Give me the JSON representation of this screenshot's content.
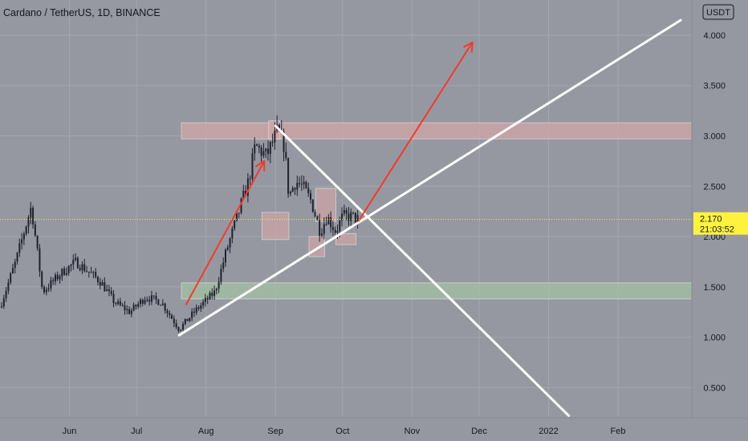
{
  "title": "Cardano / TetherUS, 1D, BINANCE",
  "currency_badge": "USDT",
  "last_price": "2.170",
  "countdown": "21:03:52",
  "colors": {
    "background": "#9598a1",
    "grid": "#a3a6ae",
    "candle": "#1e222d",
    "resistance_zone": "#d2a6a6",
    "support_zone": "#a3c2a3",
    "drawing_line": "#ffffff",
    "arrow": "#f23a2a",
    "price_label": "#fff23e"
  },
  "chart_data": {
    "type": "candlestick",
    "title": "Cardano / TetherUS, 1D, BINANCE",
    "y_axis": {
      "min": 0.2,
      "max": 4.35,
      "ticks": [
        "0.500",
        "1.000",
        "1.500",
        "2.000",
        "2.500",
        "3.000",
        "3.500",
        "4.000"
      ]
    },
    "x_axis": {
      "ticks": [
        "Jun",
        "Jul",
        "Aug",
        "Sep",
        "Oct",
        "Nov",
        "Dec",
        "2022",
        "Feb"
      ]
    },
    "grid": true,
    "current_price": 2.17,
    "price_path": [
      {
        "date": "2021-05-01",
        "close": 1.3
      },
      {
        "date": "2021-05-08",
        "close": 1.75
      },
      {
        "date": "2021-05-15",
        "close": 2.3
      },
      {
        "date": "2021-05-20",
        "close": 1.45
      },
      {
        "date": "2021-05-29",
        "close": 1.65
      },
      {
        "date": "2021-06-04",
        "close": 1.75
      },
      {
        "date": "2021-06-15",
        "close": 1.55
      },
      {
        "date": "2021-06-21",
        "close": 1.35
      },
      {
        "date": "2021-06-28",
        "close": 1.25
      },
      {
        "date": "2021-07-05",
        "close": 1.4
      },
      {
        "date": "2021-07-12",
        "close": 1.35
      },
      {
        "date": "2021-07-20",
        "close": 1.08
      },
      {
        "date": "2021-07-28",
        "close": 1.28
      },
      {
        "date": "2021-08-05",
        "close": 1.45
      },
      {
        "date": "2021-08-10",
        "close": 1.85
      },
      {
        "date": "2021-08-15",
        "close": 2.2
      },
      {
        "date": "2021-08-20",
        "close": 2.55
      },
      {
        "date": "2021-08-23",
        "close": 2.9
      },
      {
        "date": "2021-08-28",
        "close": 2.8
      },
      {
        "date": "2021-09-02",
        "close": 3.05
      },
      {
        "date": "2021-09-05",
        "close": 2.9
      },
      {
        "date": "2021-09-07",
        "close": 2.4
      },
      {
        "date": "2021-09-10",
        "close": 2.55
      },
      {
        "date": "2021-09-13",
        "close": 2.5
      },
      {
        "date": "2021-09-17",
        "close": 2.35
      },
      {
        "date": "2021-09-21",
        "close": 2.05
      },
      {
        "date": "2021-09-24",
        "close": 2.2
      },
      {
        "date": "2021-09-28",
        "close": 2.05
      },
      {
        "date": "2021-10-01",
        "close": 2.2
      },
      {
        "date": "2021-10-05",
        "close": 2.2
      },
      {
        "date": "2021-10-08",
        "close": 2.17
      }
    ],
    "annotations": {
      "zones": [
        {
          "kind": "resistance",
          "from": "2021-07-21",
          "to": "end",
          "low": 2.97,
          "high": 3.13
        },
        {
          "kind": "support",
          "from": "2021-07-21",
          "to": "end",
          "low": 1.38,
          "high": 1.54
        }
      ],
      "boxes": [
        {
          "from": "2021-08-29",
          "to": "2021-09-03",
          "low": 2.97,
          "high": 3.15
        },
        {
          "from": "2021-08-26",
          "to": "2021-09-07",
          "low": 1.97,
          "high": 2.24
        },
        {
          "from": "2021-09-16",
          "to": "2021-09-23",
          "low": 1.8,
          "high": 2.0
        },
        {
          "from": "2021-09-19",
          "to": "2021-09-28",
          "low": 2.15,
          "high": 2.48
        },
        {
          "from": "2021-09-28",
          "to": "2021-10-07",
          "low": 1.92,
          "high": 2.03
        }
      ],
      "trend_lines": [
        {
          "from": {
            "date": "2021-07-20",
            "value": 1.02
          },
          "to": {
            "date": "2022-03-01",
            "value": 4.15
          }
        },
        {
          "from": {
            "date": "2021-09-01",
            "value": 3.1
          },
          "to": {
            "date": "2022-01-10",
            "value": 0.22
          }
        }
      ],
      "arrows": [
        {
          "from": {
            "date": "2021-07-23",
            "value": 1.32
          },
          "to": {
            "date": "2021-08-27",
            "value": 2.75
          }
        },
        {
          "from": {
            "date": "2021-10-08",
            "value": 2.15
          },
          "to": {
            "date": "2021-11-28",
            "value": 3.93
          }
        }
      ]
    }
  }
}
